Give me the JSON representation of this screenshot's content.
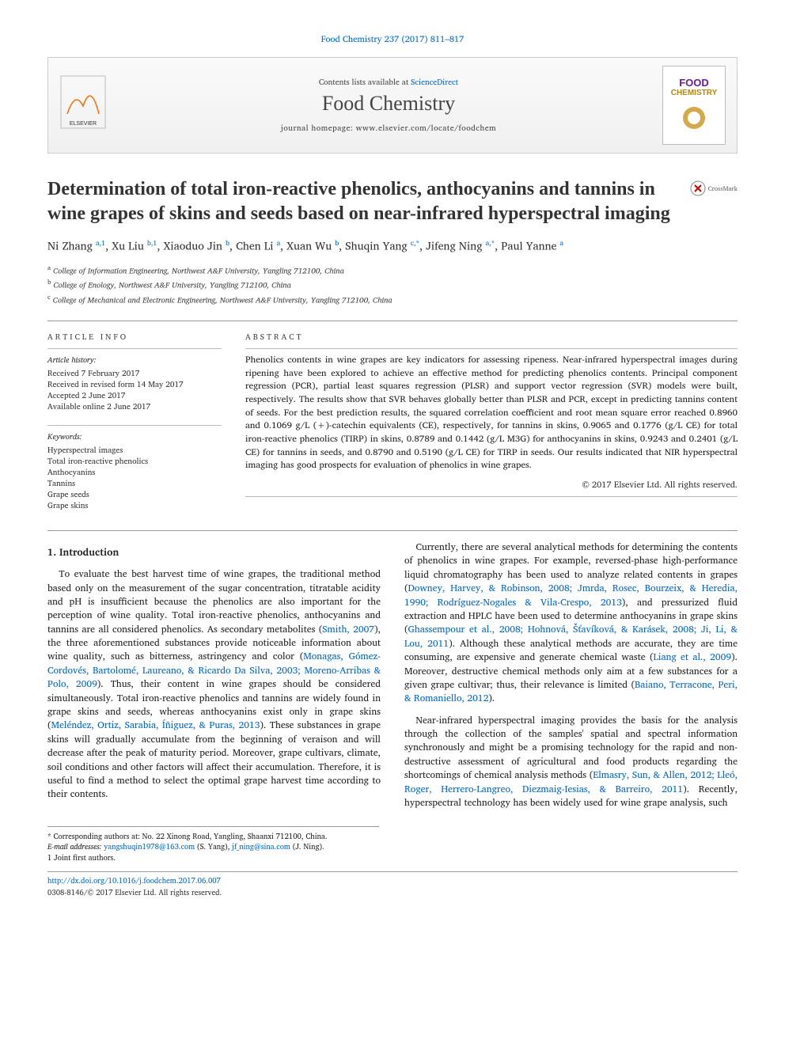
{
  "journal_ref": "Food Chemistry 237 (2017) 811–817",
  "banner": {
    "contents_line_pre": "Contents lists available at ",
    "contents_line_link": "ScienceDirect",
    "journal_name": "Food Chemistry",
    "homepage_pre": "journal homepage: ",
    "homepage": "www.elsevier.com/locate/foodchem",
    "cover_t1": "FOOD",
    "cover_t2": "CHEMISTRY"
  },
  "crossmark_label": "CrossMark",
  "title": "Determination of total iron-reactive phenolics, anthocyanins and tannins in wine grapes of skins and seeds based on near-infrared hyperspectral imaging",
  "authors_html": "Ni Zhang <sup>a,1</sup>, Xu Liu <sup>b,1</sup>, Xiaoduo Jin <sup>b</sup>, Chen Li <sup>a</sup>, Xuan Wu <sup>b</sup>, Shuqin Yang <sup>c,*</sup>, Jifeng Ning <sup>a,*</sup>, Paul Yanne <sup>a</sup>",
  "affiliations": [
    "a College of Information Engineering, Northwest A&F University, Yangling 712100, China",
    "b College of Enology, Northwest A&F University, Yangling 712100, China",
    "c College of Mechanical and Electronic Engineering, Northwest A&F University, Yangling 712100, China"
  ],
  "article_info": {
    "header": "ARTICLE INFO",
    "history_label": "Article history:",
    "history": [
      "Received 7 February 2017",
      "Received in revised form 14 May 2017",
      "Accepted 2 June 2017",
      "Available online 2 June 2017"
    ],
    "keywords_label": "Keywords:",
    "keywords": [
      "Hyperspectral images",
      "Total iron-reactive phenolics",
      "Anthocyanins",
      "Tannins",
      "Grape seeds",
      "Grape skins"
    ]
  },
  "abstract": {
    "header": "ABSTRACT",
    "text": "Phenolics contents in wine grapes are key indicators for assessing ripeness. Near-infrared hyperspectral images during ripening have been explored to achieve an effective method for predicting phenolics contents. Principal component regression (PCR), partial least squares regression (PLSR) and support vector regression (SVR) models were built, respectively. The results show that SVR behaves globally better than PLSR and PCR, except in predicting tannins content of seeds. For the best prediction results, the squared correlation coefficient and root mean square error reached 0.8960 and 0.1069 g/L (+)-catechin equivalents (CE), respectively, for tannins in skins, 0.9065 and 0.1776 (g/L CE) for total iron-reactive phenolics (TIRP) in skins, 0.8789 and 0.1442 (g/L M3G) for anthocyanins in skins, 0.9243 and 0.2401 (g/L CE) for tannins in seeds, and 0.8790 and 0.5190 (g/L CE) for TIRP in seeds. Our results indicated that NIR hyperspectral imaging has good prospects for evaluation of phenolics in wine grapes.",
    "copyright": "© 2017 Elsevier Ltd. All rights reserved."
  },
  "body": {
    "section_head": "1. Introduction",
    "p1_pre": "To evaluate the best harvest time of wine grapes, the traditional method based only on the measurement of the sugar concentration, titratable acidity and pH is insufficient because the phenolics are also important for the perception of wine quality. Total iron-reactive phenolics, anthocyanins and tannins are all considered phenolics. As secondary metabolites (",
    "p1_cite1": "Smith, 2007",
    "p1_mid1": "), the three aforementioned substances provide noticeable information about wine quality, such as bitterness, astringency and color (",
    "p1_cite2": "Monagas, Gómez-Cordovés, Bartolomé, Laureano, & Ricardo Da Silva, 2003; Moreno-Arribas & Polo, 2009",
    "p1_mid2": "). Thus, their content in wine grapes should be considered simultaneously. Total iron-reactive phenolics and tannins are widely found in grape skins and seeds, whereas anthocyanins exist only in grape skins (",
    "p1_cite3": "Meléndez, Ortiz, Sarabia, Íñiguez, & Puras, 2013",
    "p1_post": "). These substances in grape skins will gradually accumulate from the beginning of veraison and will decrease after the peak of maturity period. Moreover, grape cultivars, climate, soil conditions and other factors will affect their accumulation. Therefore, it is useful to find a method to select the optimal grape harvest time according to their contents.",
    "p2_pre": "Currently, there are several analytical methods for determining the contents of phenolics in wine grapes. For example, reversed-phase high-performance liquid chromatography has been used to analyze related contents in grapes (",
    "p2_cite1": "Downey, Harvey, & Robinson, 2008; Jmrda, Rosec, Bourzeix, & Heredia, 1990; Rodríguez-Nogales & Vila-Crespo, 2013",
    "p2_mid1": "), and pressurized fluid extraction and HPLC have been used to determine anthocyanins in grape skins (",
    "p2_cite2": "Ghassempour et al., 2008; Hohnová, Šťavíková, & Karásek, 2008; Ji, Li, & Lou, 2011",
    "p2_mid2": "). Although these analytical methods are accurate, they are time consuming, are expensive and generate chemical waste (",
    "p2_cite3": "Liang et al., 2009",
    "p2_mid3": "). Moreover, destructive chemical methods only aim at a few substances for a given grape cultivar; thus, their relevance is limited (",
    "p2_cite4": "Baiano, Terracone, Peri, & Romaniello, 2012",
    "p2_post": ").",
    "p3_pre": "Near-infrared hyperspectral imaging provides the basis for the analysis through the collection of the samples' spatial and spectral information synchronously and might be a promising technology for the rapid and non-destructive assessment of agricultural and food products regarding the shortcomings of chemical analysis methods (",
    "p3_cite1": "Elmasry, Sun, & Allen, 2012; Lleó, Roger, Herrero-Langreo, Diezmaig-Iesias, & Barreiro, 2011",
    "p3_post": "). Recently, hyperspectral technology has been widely used for wine grape analysis, such"
  },
  "footnotes": {
    "corr": "* Corresponding authors at: No. 22 Xinong Road, Yangling, Shaanxi 712100, China.",
    "email_label": "E-mail addresses: ",
    "email1": "yangshuqin1978@163.com",
    "email1_who": " (S. Yang), ",
    "email2": "jf_ning@sina.com",
    "email2_who": " (J. Ning).",
    "joint": "1 Joint first authors."
  },
  "footer": {
    "doi": "http://dx.doi.org/10.1016/j.foodchem.2017.06.007",
    "issn": "0308-8146/© 2017 Elsevier Ltd. All rights reserved."
  },
  "colors": {
    "link": "#0066cc",
    "purple": "#6a1b9a",
    "gold": "#b8860b",
    "elsevier": "#ff6a00"
  }
}
